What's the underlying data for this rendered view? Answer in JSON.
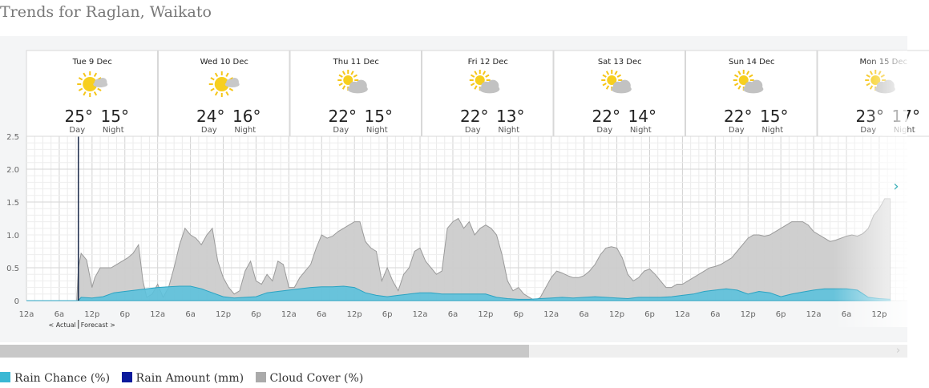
{
  "page": {
    "title": "Trends for Raglan, Waikato"
  },
  "days": [
    {
      "label": "Tue 9 Dec",
      "icon": "sun-cloud-icon",
      "day_temp": "25°",
      "night_temp": "15°"
    },
    {
      "label": "Wed 10 Dec",
      "icon": "sun-cloud-icon",
      "day_temp": "24°",
      "night_temp": "16°"
    },
    {
      "label": "Thu 11 Dec",
      "icon": "partly-cloudy-icon",
      "day_temp": "22°",
      "night_temp": "15°"
    },
    {
      "label": "Fri 12 Dec",
      "icon": "partly-cloudy-icon",
      "day_temp": "22°",
      "night_temp": "13°"
    },
    {
      "label": "Sat 13 Dec",
      "icon": "partly-cloudy-icon",
      "day_temp": "22°",
      "night_temp": "14°"
    },
    {
      "label": "Sun 14 Dec",
      "icon": "partly-cloudy-icon",
      "day_temp": "22°",
      "night_temp": "15°"
    },
    {
      "label": "Mon 15 Dec",
      "icon": "partly-cloudy-icon",
      "day_temp": "23°",
      "night_temp": "17°"
    }
  ],
  "day_label": "Day",
  "night_label": "Night",
  "actual_label": "< Actual",
  "forecast_label": "Forecast >",
  "next_arrow": "›",
  "scroll_arrow": "›",
  "legend": [
    {
      "label": "Rain Chance (%)",
      "color": "#3ab8d4"
    },
    {
      "label": "Rain Amount (mm)",
      "color": "#0b1a9c"
    },
    {
      "label": "Cloud Cover (%)",
      "color": "#aaaaaa"
    }
  ],
  "chart_data": {
    "type": "area",
    "ylim": [
      0,
      2.5
    ],
    "y_ticks": [
      "0",
      "0.5",
      "1.0",
      "1.5",
      "2.0",
      "2.5"
    ],
    "x_tick_labels": [
      "12a",
      "6a",
      "12p",
      "6p",
      "12a",
      "6a",
      "12p",
      "6p",
      "12a",
      "6a",
      "12p",
      "6p",
      "12a",
      "6a",
      "12p",
      "6p",
      "12a",
      "6a",
      "12p",
      "6p",
      "12a",
      "6a",
      "12p",
      "6p",
      "12a",
      "6a",
      "12p"
    ],
    "x_unit": "hours from Tue 9 Dec 12a",
    "current_time_hour": 9.5,
    "series": [
      {
        "name": "Cloud Cover (%)",
        "color": "#cccccc",
        "points": [
          [
            0,
            0
          ],
          [
            9.2,
            0
          ],
          [
            9.5,
            0.5
          ],
          [
            10,
            0.72
          ],
          [
            11,
            0.62
          ],
          [
            12,
            0.2
          ],
          [
            12.5,
            0.35
          ],
          [
            13.5,
            0.5
          ],
          [
            15.5,
            0.5
          ],
          [
            16.5,
            0.55
          ],
          [
            17.5,
            0.6
          ],
          [
            18.5,
            0.65
          ],
          [
            19.5,
            0.72
          ],
          [
            20.5,
            0.85
          ],
          [
            21.3,
            0.3
          ],
          [
            22,
            0.05
          ],
          [
            23,
            0.1
          ],
          [
            24,
            0.25
          ],
          [
            25,
            0.05
          ],
          [
            26,
            0.2
          ],
          [
            27,
            0.5
          ],
          [
            28,
            0.85
          ],
          [
            29,
            1.1
          ],
          [
            30,
            1.0
          ],
          [
            31,
            0.95
          ],
          [
            32,
            0.85
          ],
          [
            33,
            1.0
          ],
          [
            34,
            1.1
          ],
          [
            35,
            0.6
          ],
          [
            36,
            0.35
          ],
          [
            37,
            0.2
          ],
          [
            38,
            0.1
          ],
          [
            39,
            0.15
          ],
          [
            40,
            0.45
          ],
          [
            41,
            0.6
          ],
          [
            42,
            0.3
          ],
          [
            43,
            0.25
          ],
          [
            44,
            0.4
          ],
          [
            45,
            0.3
          ],
          [
            46,
            0.6
          ],
          [
            47,
            0.55
          ],
          [
            48,
            0.2
          ],
          [
            49,
            0.2
          ],
          [
            50,
            0.35
          ],
          [
            51,
            0.45
          ],
          [
            52,
            0.55
          ],
          [
            53,
            0.8
          ],
          [
            54,
            1.0
          ],
          [
            55,
            0.95
          ],
          [
            56,
            0.98
          ],
          [
            57,
            1.05
          ],
          [
            58,
            1.1
          ],
          [
            59,
            1.15
          ],
          [
            60,
            1.2
          ],
          [
            61,
            1.2
          ],
          [
            62,
            0.9
          ],
          [
            63,
            0.8
          ],
          [
            64,
            0.75
          ],
          [
            65,
            0.3
          ],
          [
            66,
            0.5
          ],
          [
            67,
            0.3
          ],
          [
            68,
            0.15
          ],
          [
            69,
            0.4
          ],
          [
            70,
            0.5
          ],
          [
            71,
            0.75
          ],
          [
            72,
            0.8
          ],
          [
            73,
            0.6
          ],
          [
            74,
            0.5
          ],
          [
            75,
            0.4
          ],
          [
            76,
            0.45
          ],
          [
            77,
            1.1
          ],
          [
            78,
            1.2
          ],
          [
            79,
            1.25
          ],
          [
            80,
            1.1
          ],
          [
            81,
            1.2
          ],
          [
            82,
            1.0
          ],
          [
            83,
            1.1
          ],
          [
            84,
            1.15
          ],
          [
            85,
            1.1
          ],
          [
            86,
            1.0
          ],
          [
            87,
            0.7
          ],
          [
            88,
            0.3
          ],
          [
            89,
            0.15
          ],
          [
            90,
            0.2
          ],
          [
            91,
            0.1
          ],
          [
            92,
            0.05
          ],
          [
            93,
            0.0
          ],
          [
            94,
            0.05
          ],
          [
            95,
            0.2
          ],
          [
            96,
            0.35
          ],
          [
            97,
            0.45
          ],
          [
            98,
            0.42
          ],
          [
            99,
            0.38
          ],
          [
            100,
            0.35
          ],
          [
            101,
            0.35
          ],
          [
            102,
            0.38
          ],
          [
            103,
            0.45
          ],
          [
            104,
            0.55
          ],
          [
            105,
            0.7
          ],
          [
            106,
            0.8
          ],
          [
            107,
            0.82
          ],
          [
            108,
            0.8
          ],
          [
            109,
            0.65
          ],
          [
            110,
            0.4
          ],
          [
            111,
            0.3
          ],
          [
            112,
            0.35
          ],
          [
            113,
            0.45
          ],
          [
            114,
            0.48
          ],
          [
            115,
            0.4
          ],
          [
            116,
            0.3
          ],
          [
            117,
            0.2
          ],
          [
            118,
            0.2
          ],
          [
            119,
            0.25
          ],
          [
            120,
            0.25
          ],
          [
            121,
            0.3
          ],
          [
            122,
            0.35
          ],
          [
            123,
            0.4
          ],
          [
            124,
            0.45
          ],
          [
            125,
            0.5
          ],
          [
            126,
            0.52
          ],
          [
            127,
            0.55
          ],
          [
            128,
            0.6
          ],
          [
            129,
            0.65
          ],
          [
            130,
            0.75
          ],
          [
            131,
            0.85
          ],
          [
            132,
            0.95
          ],
          [
            133,
            1.0
          ],
          [
            134,
            1.0
          ],
          [
            135,
            0.98
          ],
          [
            136,
            1.0
          ],
          [
            137,
            1.05
          ],
          [
            138,
            1.1
          ],
          [
            139,
            1.15
          ],
          [
            140,
            1.2
          ],
          [
            141,
            1.2
          ],
          [
            142,
            1.2
          ],
          [
            143,
            1.15
          ],
          [
            144,
            1.05
          ],
          [
            145,
            1.0
          ],
          [
            146,
            0.95
          ],
          [
            147,
            0.9
          ],
          [
            148,
            0.92
          ],
          [
            149,
            0.95
          ],
          [
            150,
            0.98
          ],
          [
            151,
            1.0
          ],
          [
            152,
            0.98
          ],
          [
            153,
            1.02
          ],
          [
            154,
            1.1
          ],
          [
            155,
            1.3
          ],
          [
            156,
            1.4
          ],
          [
            157,
            1.55
          ],
          [
            158,
            1.55
          ]
        ]
      },
      {
        "name": "Rain Chance (%)",
        "color": "#5cc1db",
        "points": [
          [
            0,
            0
          ],
          [
            9.5,
            0
          ],
          [
            10,
            0.05
          ],
          [
            12,
            0.04
          ],
          [
            14,
            0.06
          ],
          [
            16,
            0.12
          ],
          [
            18,
            0.14
          ],
          [
            20,
            0.16
          ],
          [
            22,
            0.18
          ],
          [
            24,
            0.2
          ],
          [
            26,
            0.21
          ],
          [
            28,
            0.22
          ],
          [
            30,
            0.22
          ],
          [
            32,
            0.18
          ],
          [
            34,
            0.12
          ],
          [
            36,
            0.06
          ],
          [
            38,
            0.04
          ],
          [
            40,
            0.05
          ],
          [
            42,
            0.06
          ],
          [
            44,
            0.12
          ],
          [
            46,
            0.14
          ],
          [
            48,
            0.16
          ],
          [
            50,
            0.18
          ],
          [
            52,
            0.2
          ],
          [
            54,
            0.21
          ],
          [
            56,
            0.21
          ],
          [
            58,
            0.22
          ],
          [
            60,
            0.2
          ],
          [
            62,
            0.12
          ],
          [
            64,
            0.08
          ],
          [
            66,
            0.06
          ],
          [
            68,
            0.08
          ],
          [
            70,
            0.1
          ],
          [
            72,
            0.12
          ],
          [
            74,
            0.12
          ],
          [
            76,
            0.1
          ],
          [
            78,
            0.1
          ],
          [
            80,
            0.1
          ],
          [
            82,
            0.1
          ],
          [
            84,
            0.1
          ],
          [
            86,
            0.05
          ],
          [
            88,
            0.03
          ],
          [
            90,
            0.02
          ],
          [
            92,
            0.02
          ],
          [
            94,
            0.03
          ],
          [
            96,
            0.04
          ],
          [
            98,
            0.05
          ],
          [
            100,
            0.04
          ],
          [
            102,
            0.05
          ],
          [
            104,
            0.06
          ],
          [
            106,
            0.05
          ],
          [
            108,
            0.04
          ],
          [
            110,
            0.03
          ],
          [
            112,
            0.05
          ],
          [
            114,
            0.05
          ],
          [
            116,
            0.05
          ],
          [
            118,
            0.06
          ],
          [
            120,
            0.08
          ],
          [
            122,
            0.1
          ],
          [
            124,
            0.14
          ],
          [
            126,
            0.16
          ],
          [
            128,
            0.18
          ],
          [
            130,
            0.16
          ],
          [
            132,
            0.1
          ],
          [
            134,
            0.14
          ],
          [
            136,
            0.12
          ],
          [
            138,
            0.06
          ],
          [
            140,
            0.1
          ],
          [
            142,
            0.13
          ],
          [
            144,
            0.16
          ],
          [
            146,
            0.18
          ],
          [
            148,
            0.18
          ],
          [
            150,
            0.18
          ],
          [
            152,
            0.16
          ],
          [
            154,
            0.05
          ],
          [
            156,
            0.03
          ],
          [
            158,
            0.02
          ]
        ]
      }
    ]
  }
}
